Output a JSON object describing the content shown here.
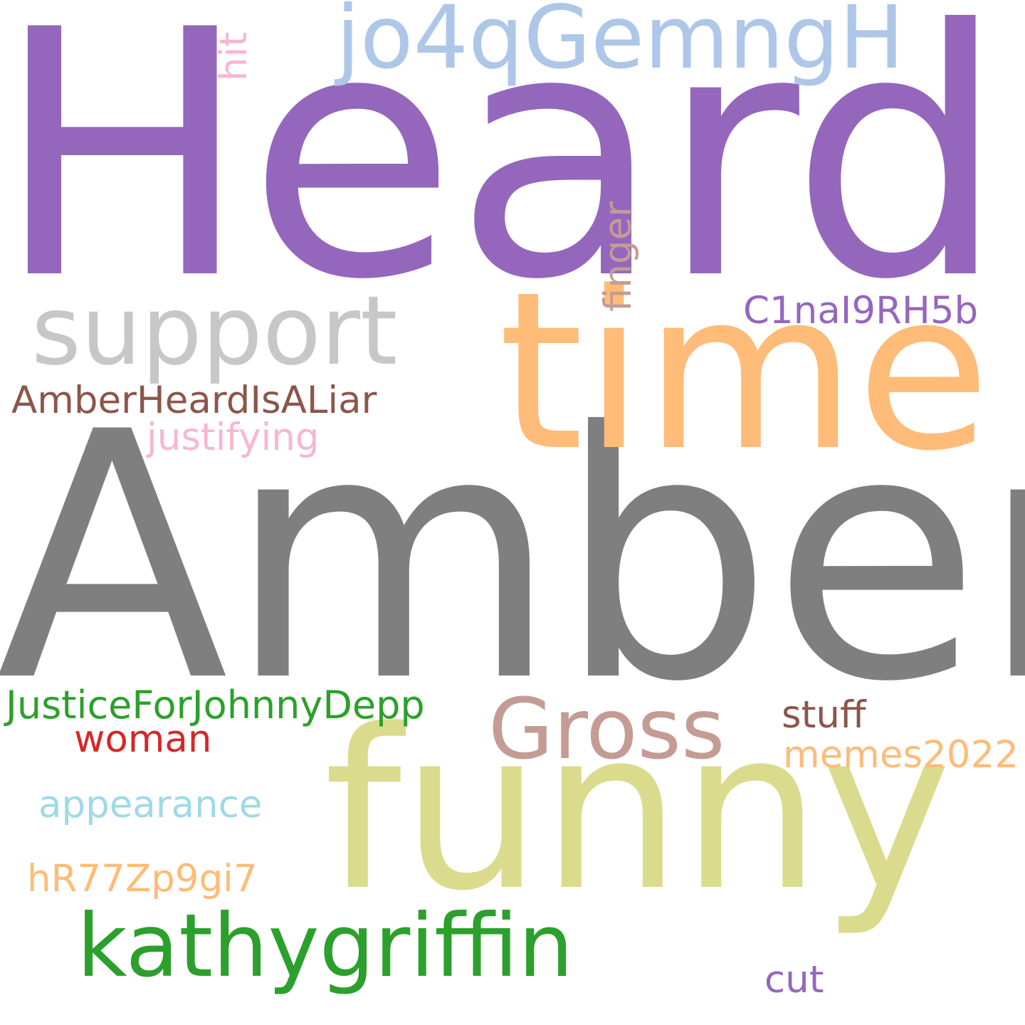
{
  "cloud": {
    "background": "#ffffff",
    "words": [
      {
        "id": "heard",
        "text": "Heard",
        "color": "#9467bd",
        "vertical": false
      },
      {
        "id": "amber",
        "text": "Amber",
        "color": "#7f7f7f",
        "vertical": false
      },
      {
        "id": "time",
        "text": "time",
        "color": "#ffbb78",
        "vertical": false
      },
      {
        "id": "funny",
        "text": "funny",
        "color": "#dbdb8d",
        "vertical": false
      },
      {
        "id": "support",
        "text": "support",
        "color": "#c7c7c7",
        "vertical": false
      },
      {
        "id": "jo4",
        "text": "jo4qGemngH",
        "color": "#aec7e8",
        "vertical": false
      },
      {
        "id": "gross",
        "text": "Gross",
        "color": "#c49c94",
        "vertical": false
      },
      {
        "id": "kathy",
        "text": "kathygriffin",
        "color": "#2ca02c",
        "vertical": false
      },
      {
        "id": "c1na",
        "text": "C1naI9RH5b",
        "color": "#9467bd",
        "vertical": false
      },
      {
        "id": "aliar",
        "text": "AmberHeardIsALiar",
        "color": "#8c564b",
        "vertical": false
      },
      {
        "id": "justify",
        "text": "justifying",
        "color": "#f7b6d2",
        "vertical": false
      },
      {
        "id": "jfjd",
        "text": "JusticeForJohnnyDepp",
        "color": "#2ca02c",
        "vertical": false
      },
      {
        "id": "woman",
        "text": "woman",
        "color": "#d62728",
        "vertical": false
      },
      {
        "id": "stuff",
        "text": "stuff",
        "color": "#8c564b",
        "vertical": false
      },
      {
        "id": "memes",
        "text": "memes2022",
        "color": "#ffbb78",
        "vertical": false
      },
      {
        "id": "appear",
        "text": "appearance",
        "color": "#9edae5",
        "vertical": false
      },
      {
        "id": "hr77",
        "text": "hR77Zp9gi7",
        "color": "#ffbb78",
        "vertical": false
      },
      {
        "id": "cut",
        "text": "cut",
        "color": "#9467bd",
        "vertical": false
      },
      {
        "id": "hit",
        "text": "hit",
        "color": "#f7b6d2",
        "vertical": true
      },
      {
        "id": "finger",
        "text": "finger",
        "color": "#c49c94",
        "vertical": true
      }
    ]
  }
}
